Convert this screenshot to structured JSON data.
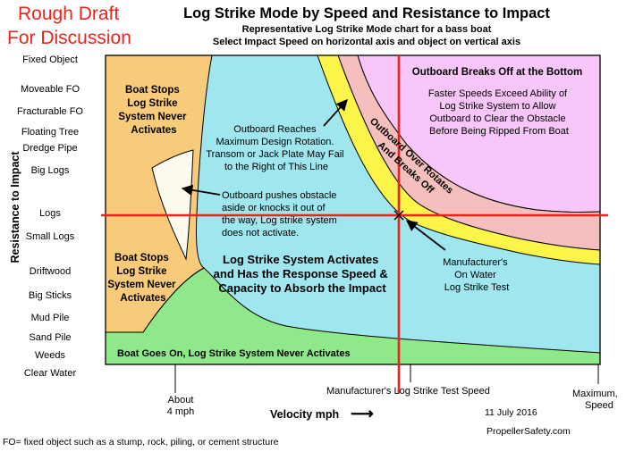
{
  "draft": {
    "line1": "Rough Draft",
    "line2": "For Discussion"
  },
  "header": {
    "title": "Log Strike Mode by Speed and Resistance to Impact",
    "subtitle1": "Representative Log Strike Mode chart for a bass boat",
    "subtitle2": "Select Impact Speed on horizontal axis and object on vertical axis"
  },
  "y_axis": {
    "title": "Resistance to Impact",
    "labels": [
      "Fixed Object",
      "Moveable FO",
      "Fracturable FO",
      "Floating Tree",
      "Dredge Pipe",
      "Big Logs",
      "Logs",
      "Small Logs",
      "Driftwood",
      "Big Sticks",
      "Mud Pile",
      "Sand Pile",
      "Weeds",
      "Clear Water"
    ]
  },
  "x_axis": {
    "title": "Velocity mph",
    "arrow": "⟶",
    "about_line1": "About",
    "about_line2": "4 mph",
    "test_speed": "Manufacturer's Log Strike Test Speed",
    "max_line1": "Maximum,",
    "max_line2": "Speed"
  },
  "regions": {
    "stops_top": [
      "Boat Stops",
      "Log Strike",
      "System Never",
      "Activates"
    ],
    "stops_bottom": [
      "Boat Stops",
      "Log Strike",
      "System Never",
      "Activates"
    ],
    "outboard_breaks_title": "Outboard Breaks Off at the Bottom",
    "outboard_breaks_desc": [
      "Faster Speeds Exceed Ability of",
      "Log Strike System to Allow",
      "Outboard to Clear the Obstacle",
      "Before Being Ripped From Boat"
    ],
    "over_rotates": [
      "Outboard Over Rotates",
      "And Breaks Off"
    ],
    "max_rotation": [
      "Outboard Reaches",
      "Maximum Design Rotation.",
      "Transom or Jack Plate May Fail",
      "to the Right of This Line"
    ],
    "pushes_obstacle": [
      "Outboard pushes obstacle",
      "aside or knocks it out of",
      "the way, Log strike system",
      "does not activate."
    ],
    "activates": [
      "Log Strike System Activates",
      "and Has the Response Speed &",
      "Capacity to Absorb the Impact"
    ],
    "test_label": [
      "Manufacturer's",
      "On Water",
      "Log Strike Test"
    ],
    "boat_goes_on": "Boat Goes On, Log Strike System Never Activates"
  },
  "colors": {
    "orange": "#f7cb79",
    "cyan": "#9fe6ee",
    "green": "#8fe88a",
    "yellow": "#fbf54a",
    "salmon": "#f4bfbd",
    "pink": "#f8c6f8",
    "cream": "#fdfaee",
    "red_line": "#e8251d"
  },
  "footer": {
    "date": "11 July 2016",
    "site": "PropellerSafety.com",
    "note": "FO= fixed object such as a stump, rock, piling, or cement structure"
  }
}
